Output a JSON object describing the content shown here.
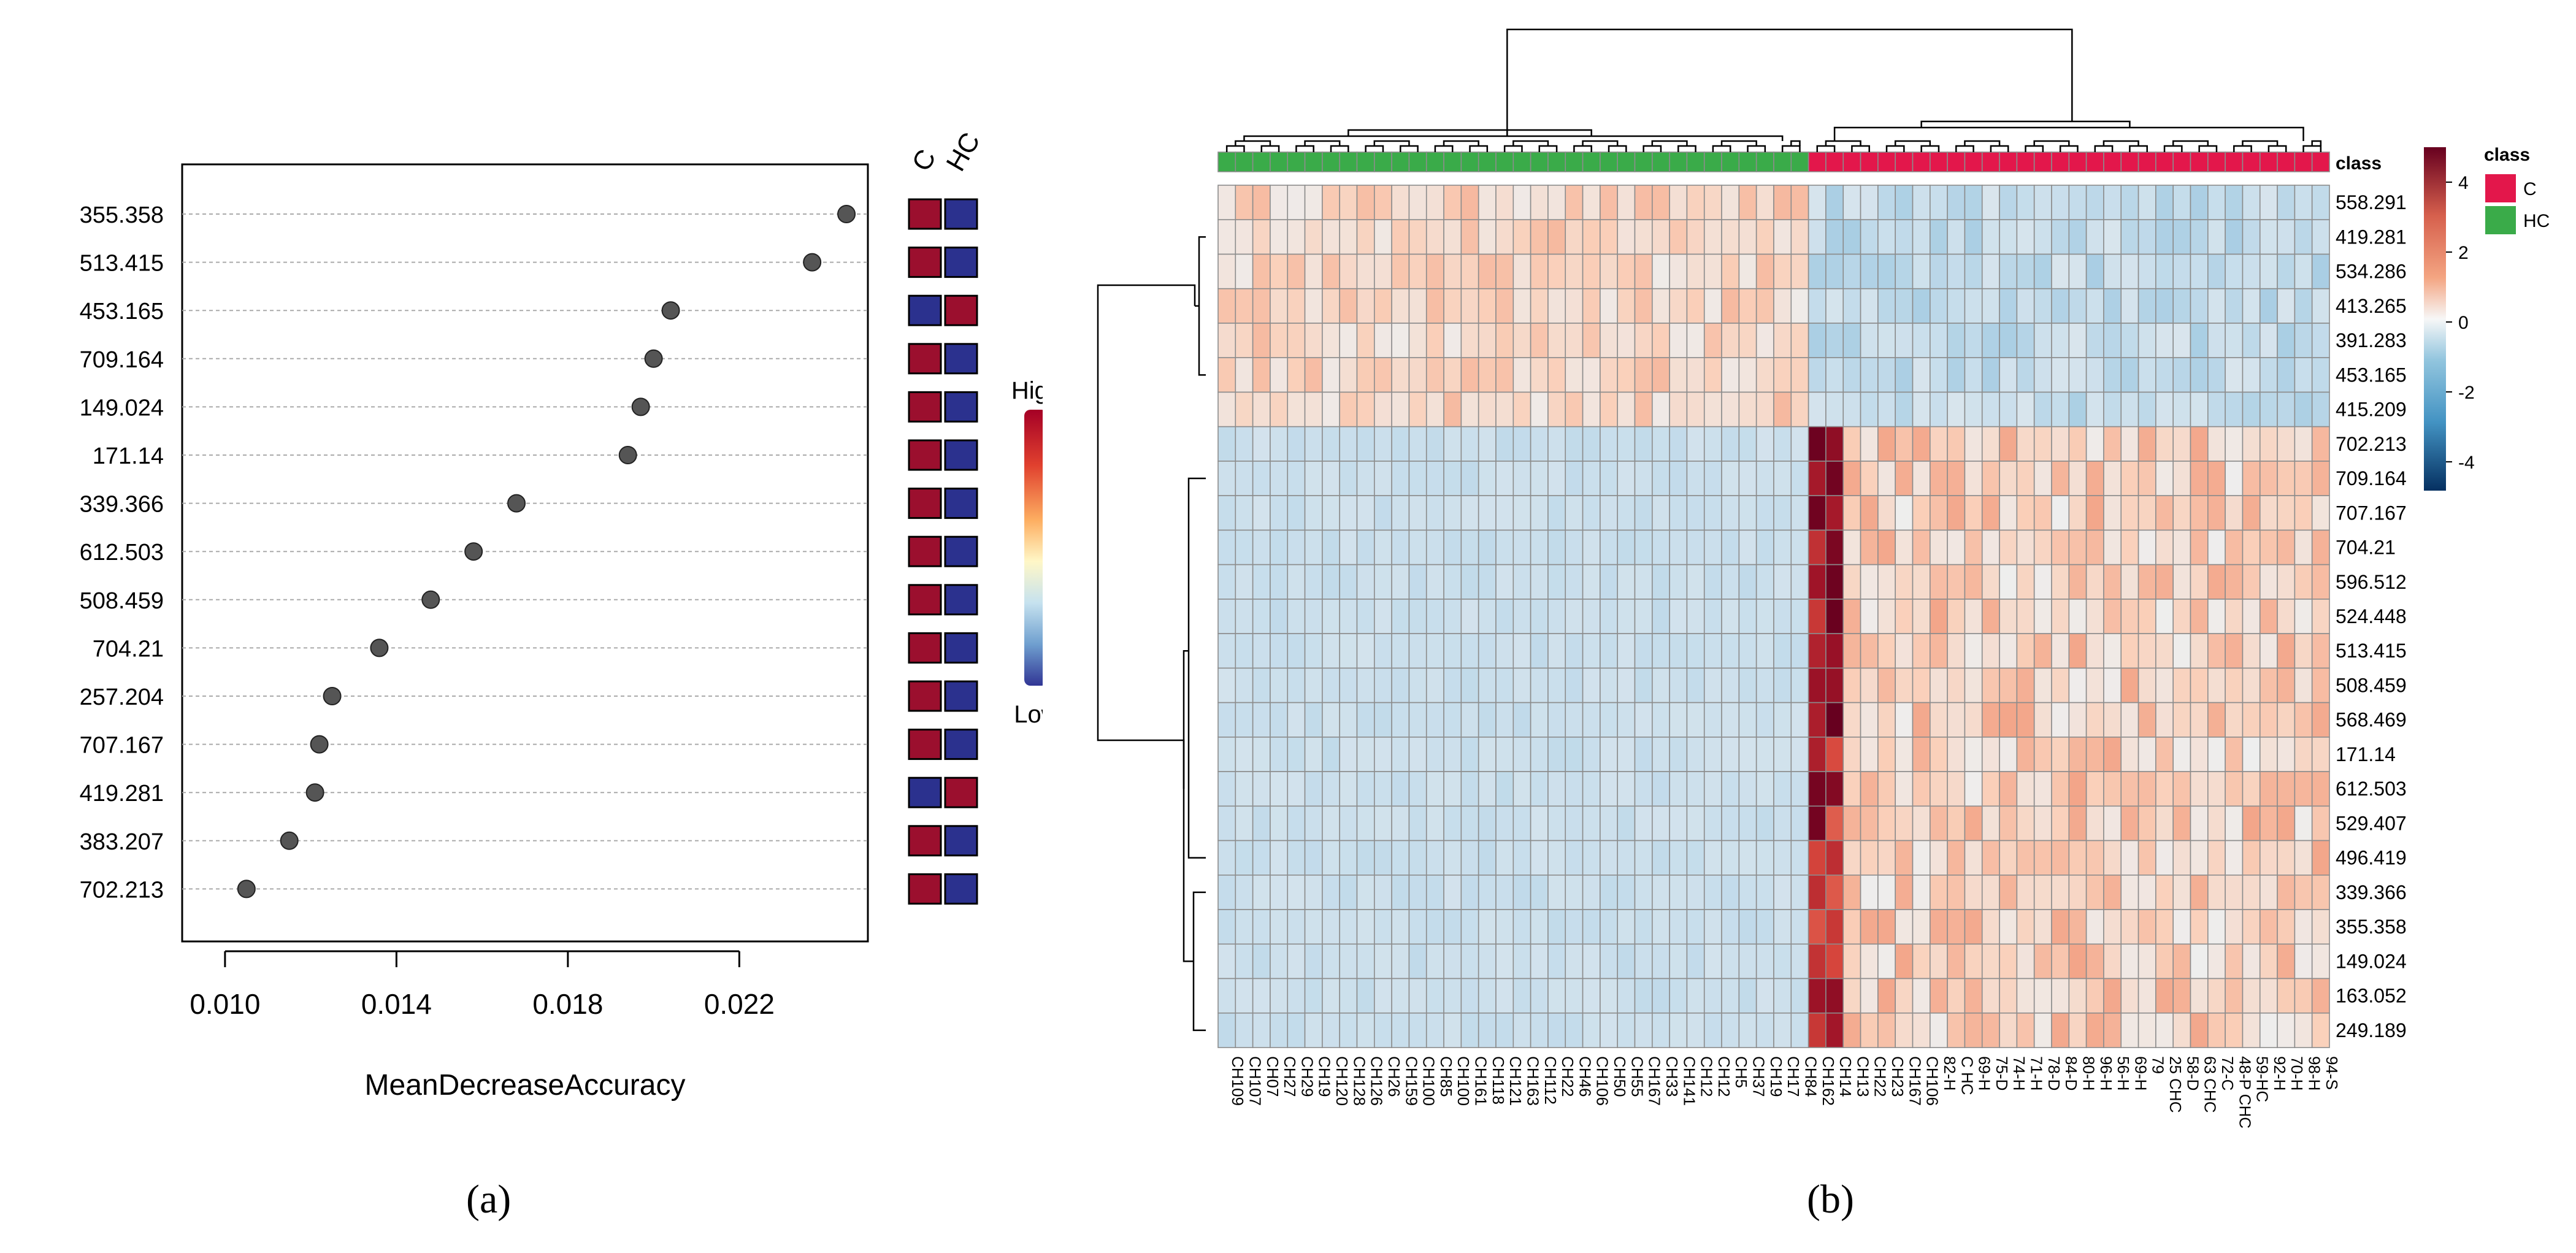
{
  "colors": {
    "C": "#e3174b",
    "HC": "#3aab49",
    "panel_red": "#9b0f2e",
    "panel_blue": "#2b318e",
    "point": "#555555"
  },
  "panels": {
    "a_label": "(a)",
    "b_label": "(b)"
  },
  "chart_data": [
    {
      "type": "scatter",
      "title": "",
      "xlabel": "MeanDecreaseAccuracy",
      "ylabel": "",
      "xlim": [
        0.009,
        0.025
      ],
      "xticks": [
        "0.010",
        "0.014",
        "0.018",
        "0.022"
      ],
      "xtick_values": [
        0.01,
        0.014,
        0.018,
        0.022
      ],
      "features": [
        "355.358",
        "513.415",
        "453.165",
        "709.164",
        "149.024",
        "171.14",
        "339.366",
        "612.503",
        "508.459",
        "704.21",
        "257.204",
        "707.167",
        "419.281",
        "383.207",
        "702.213"
      ],
      "values": [
        0.0245,
        0.0237,
        0.0204,
        0.02,
        0.0197,
        0.0194,
        0.0168,
        0.0158,
        0.0148,
        0.0136,
        0.0125,
        0.0122,
        0.0121,
        0.0115,
        0.0105
      ],
      "group_columns": [
        "C",
        "HC"
      ],
      "group_high": [
        "C",
        "C",
        "HC",
        "C",
        "C",
        "C",
        "C",
        "C",
        "C",
        "C",
        "C",
        "C",
        "HC",
        "C",
        "C"
      ],
      "legend": {
        "high": "High",
        "low": "Low"
      }
    },
    {
      "type": "heatmap",
      "legend_title": "class",
      "legend_entries": [
        "C",
        "HC"
      ],
      "colorbar_ticks": [
        "4",
        "2",
        "0",
        "-2",
        "-4"
      ],
      "colorbar_values": [
        4,
        2,
        0,
        -2,
        -4
      ],
      "class_row_label": "class",
      "rows": [
        "558.291",
        "419.281",
        "534.286",
        "413.265",
        "391.283",
        "453.165",
        "415.209",
        "702.213",
        "709.164",
        "707.167",
        "704.21",
        "596.512",
        "524.448",
        "513.415",
        "508.459",
        "568.469",
        "171.14",
        "612.503",
        "529.407",
        "496.419",
        "339.366",
        "355.358",
        "149.024",
        "163.052",
        "249.189"
      ],
      "hc_columns": 34,
      "c_columns": 30,
      "column_labels": [
        "CH109",
        "CH107",
        "CH07",
        "CH27",
        "CH29",
        "CH19",
        "CH120",
        "CH128",
        "CH126",
        "CH26",
        "CH159",
        "CH100",
        "CH85",
        "CH100",
        "CH161",
        "CH118",
        "CH121",
        "CH163",
        "CH112",
        "CH22",
        "CH46",
        "CH106",
        "CH50",
        "CH55",
        "CH167",
        "CH33",
        "CH141",
        "CH12",
        "CH12",
        "CH5",
        "CH37",
        "CH19",
        "CH17",
        "CH84",
        "CH162",
        "CH14",
        "CH13",
        "CH22",
        "CH23",
        "CH167",
        "CH106",
        "82-H",
        "C HC",
        "69-H",
        "75-D",
        "74-H",
        "71-H",
        "78-D",
        "84-D",
        "80-H",
        "96-H",
        "56-H",
        "69-H",
        "79",
        "25 CHC",
        "58-D",
        "63 CHC",
        "72-C",
        "48-P CHC",
        "59-HC",
        "92-H",
        "70-H",
        "98-H",
        "94-S"
      ]
    }
  ]
}
